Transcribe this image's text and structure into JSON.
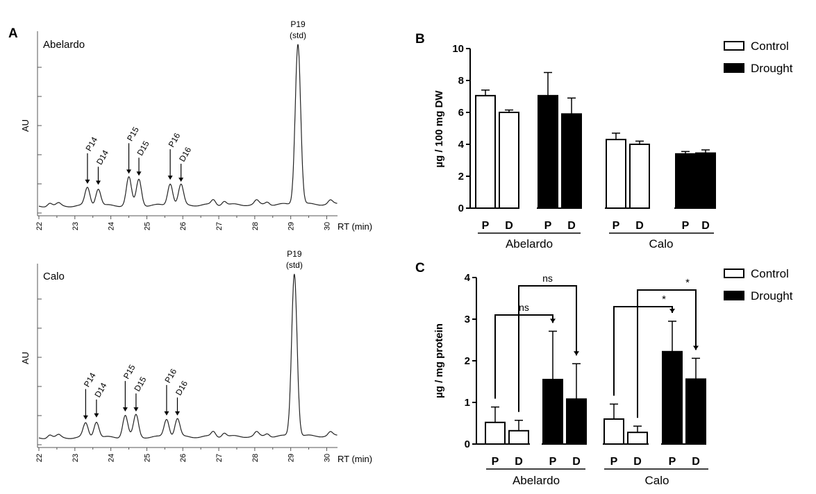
{
  "panels": {
    "a": {
      "label": "A"
    },
    "b": {
      "label": "B"
    },
    "c": {
      "label": "C"
    }
  },
  "chromatograms": [
    {
      "title": "Abelardo",
      "ylabel": "AU",
      "xlabel": "RT (min)",
      "x_ticks": [
        "22",
        "23",
        "24",
        "25",
        "26",
        "27",
        "28",
        "29",
        "30"
      ],
      "xlim": [
        22,
        30.3
      ],
      "peaks": [
        {
          "label": "P14",
          "rt": 23.35,
          "height": 0.09
        },
        {
          "label": "D14",
          "rt": 23.65,
          "height": 0.085
        },
        {
          "label": "P15",
          "rt": 24.5,
          "height": 0.14
        },
        {
          "label": "D15",
          "rt": 24.78,
          "height": 0.13
        },
        {
          "label": "P16",
          "rt": 25.65,
          "height": 0.11
        },
        {
          "label": "D16",
          "rt": 25.95,
          "height": 0.1
        }
      ],
      "standard": {
        "label": "P19",
        "sublabel": "(std)",
        "rt": 29.2,
        "height": 0.8
      }
    },
    {
      "title": "Calo",
      "ylabel": "AU",
      "xlabel": "RT (min)",
      "x_ticks": [
        "22",
        "23",
        "24",
        "25",
        "26",
        "27",
        "28",
        "29",
        "30"
      ],
      "xlim": [
        22,
        30.3
      ],
      "peaks": [
        {
          "label": "P14",
          "rt": 23.3,
          "height": 0.07
        },
        {
          "label": "D14",
          "rt": 23.6,
          "height": 0.08
        },
        {
          "label": "P15",
          "rt": 24.4,
          "height": 0.11
        },
        {
          "label": "D15",
          "rt": 24.7,
          "height": 0.11
        },
        {
          "label": "P16",
          "rt": 25.55,
          "height": 0.09
        },
        {
          "label": "D16",
          "rt": 25.85,
          "height": 0.09
        }
      ],
      "standard": {
        "label": "P19",
        "sublabel": "(std)",
        "rt": 29.1,
        "height": 0.81
      }
    }
  ],
  "chart_data": [
    {
      "type": "bar",
      "panel": "B",
      "ylabel": "µg / 100 mg DW",
      "ylim": [
        0,
        10
      ],
      "y_ticks": [
        "0",
        "2",
        "4",
        "6",
        "8",
        "10"
      ],
      "categories": [
        "P",
        "D",
        "P",
        "D",
        "P",
        "D",
        "P",
        "D"
      ],
      "groups": [
        "Abelardo",
        "Calo"
      ],
      "series": [
        {
          "name": "Control",
          "color": "#ffffff",
          "positions": [
            0,
            1,
            4,
            5
          ],
          "values": [
            7.05,
            6.0,
            4.3,
            4.0
          ],
          "errors": [
            0.35,
            0.15,
            0.4,
            0.2
          ]
        },
        {
          "name": "Drought",
          "color": "#000000",
          "positions": [
            2,
            3,
            6,
            7
          ],
          "values": [
            7.05,
            5.9,
            3.4,
            3.45
          ],
          "errors": [
            1.45,
            1.0,
            0.15,
            0.2
          ]
        }
      ],
      "legend_position": "top-right"
    },
    {
      "type": "bar",
      "panel": "C",
      "ylabel": "µg / mg protein",
      "ylim": [
        0,
        4
      ],
      "y_ticks": [
        "0",
        "1",
        "2",
        "3",
        "4"
      ],
      "categories": [
        "P",
        "D",
        "P",
        "D",
        "P",
        "D",
        "P",
        "D"
      ],
      "groups": [
        "Abelardo",
        "Calo"
      ],
      "series": [
        {
          "name": "Control",
          "color": "#ffffff",
          "positions": [
            0,
            1,
            4,
            5
          ],
          "values": [
            0.52,
            0.32,
            0.6,
            0.28
          ],
          "errors": [
            0.37,
            0.25,
            0.36,
            0.15
          ]
        },
        {
          "name": "Drought",
          "color": "#000000",
          "positions": [
            2,
            3,
            6,
            7
          ],
          "values": [
            1.55,
            1.08,
            2.22,
            1.56
          ],
          "errors": [
            1.16,
            0.85,
            0.73,
            0.5
          ]
        }
      ],
      "significance": [
        {
          "from": 0,
          "to": 2,
          "level": 3.1,
          "label": "ns"
        },
        {
          "from": 1,
          "to": 3,
          "level": 3.8,
          "label": "ns"
        },
        {
          "from": 4,
          "to": 6,
          "level": 3.3,
          "label": "*"
        },
        {
          "from": 5,
          "to": 7,
          "level": 3.7,
          "label": "*"
        }
      ],
      "legend_position": "top-right"
    }
  ]
}
